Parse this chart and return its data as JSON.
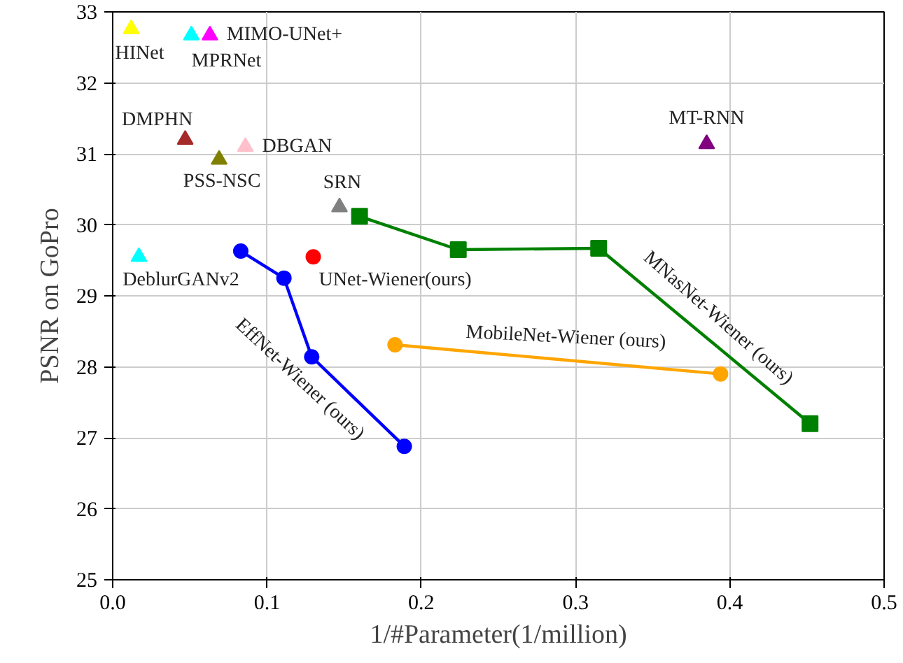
{
  "chart_data": {
    "type": "scatter",
    "xlabel": "1/#Parameter(1/million)",
    "ylabel": "PSNR on GoPro",
    "xlim": [
      0,
      0.5
    ],
    "ylim": [
      25,
      33
    ],
    "xticks": [
      {
        "value": 0,
        "label": "0.0"
      },
      0.1,
      0.2,
      0.3,
      0.4,
      0.5
    ],
    "yticks": [
      25,
      26,
      27,
      28,
      29,
      30,
      31,
      32,
      33
    ],
    "grid": true,
    "legend": false,
    "series": [
      {
        "name": "HINet",
        "marker": "triangle",
        "color": "#ffff00",
        "x": [
          0.012
        ],
        "values": [
          32.76
        ]
      },
      {
        "name": "MPRNet",
        "marker": "triangle",
        "color": "#00ffff",
        "x": [
          0.051
        ],
        "values": [
          32.67
        ]
      },
      {
        "name": "MIMO-UNet+",
        "marker": "triangle",
        "color": "#ff00ff",
        "x": [
          0.063
        ],
        "values": [
          32.67
        ]
      },
      {
        "name": "DMPHN",
        "marker": "triangle",
        "color": "#a52a2a",
        "x": [
          0.047
        ],
        "values": [
          31.2
        ]
      },
      {
        "name": "PSS-NSC",
        "marker": "triangle",
        "color": "#808000",
        "x": [
          0.069
        ],
        "values": [
          30.92
        ]
      },
      {
        "name": "DBGAN",
        "marker": "triangle",
        "color": "#ffc0cb",
        "x": [
          0.086
        ],
        "values": [
          31.1
        ]
      },
      {
        "name": "SRN",
        "marker": "triangle",
        "color": "#808080",
        "x": [
          0.147
        ],
        "values": [
          30.25
        ]
      },
      {
        "name": "DeblurGANv2",
        "marker": "triangle",
        "color": "#00ffff",
        "x": [
          0.017
        ],
        "values": [
          29.55
        ]
      },
      {
        "name": "MT-RNN",
        "marker": "triangle",
        "color": "#800080",
        "x": [
          0.385
        ],
        "values": [
          31.14
        ]
      },
      {
        "name": "UNet-Wiener(ours)",
        "marker": "circle",
        "color": "#ff0000",
        "x": [
          0.13
        ],
        "values": [
          29.55
        ]
      },
      {
        "name": "EffNet-Wiener (ours)",
        "type": "line",
        "marker": "circle",
        "color": "#0000ff",
        "x": [
          0.083,
          0.111,
          0.129,
          0.189
        ],
        "values": [
          29.63,
          29.25,
          28.14,
          26.88
        ]
      },
      {
        "name": "MobileNet-Wiener (ours)",
        "type": "line",
        "marker": "circle",
        "color": "#ffa500",
        "x": [
          0.183,
          0.394
        ],
        "values": [
          28.31,
          27.9
        ]
      },
      {
        "name": "MNasNet-Wiener (ours)",
        "type": "line",
        "marker": "square",
        "color": "#008000",
        "x": [
          0.16,
          0.224,
          0.315,
          0.452
        ],
        "values": [
          30.12,
          29.65,
          29.67,
          27.2
        ]
      }
    ]
  }
}
